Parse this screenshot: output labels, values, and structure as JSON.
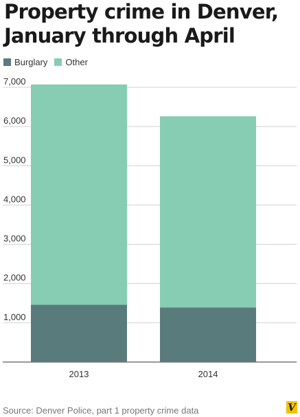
{
  "title_line1": "Property crime in Denver,",
  "title_line2": "January through April",
  "source": "Source: Denver Police, part 1 property crime data",
  "logo_text": "V",
  "colors": {
    "burglary": "#5a7b7c",
    "other": "#86cdb3",
    "grid": "#d0d0d0",
    "axis_text": "#333333",
    "logo_bg": "#f2c200"
  },
  "chart_data": {
    "type": "bar",
    "stacked": true,
    "categories": [
      "2013",
      "2014"
    ],
    "series": [
      {
        "name": "Burglary",
        "values": [
          1460,
          1390
        ]
      },
      {
        "name": "Other",
        "values": [
          5610,
          4870
        ]
      }
    ],
    "totals": [
      7070,
      6260
    ],
    "ylim": [
      0,
      7000
    ],
    "yticks": [
      "7,000",
      "6,000",
      "5,000",
      "4,000",
      "3,000",
      "2,000",
      "1,000"
    ],
    "grid": true,
    "legend": "top-left"
  }
}
